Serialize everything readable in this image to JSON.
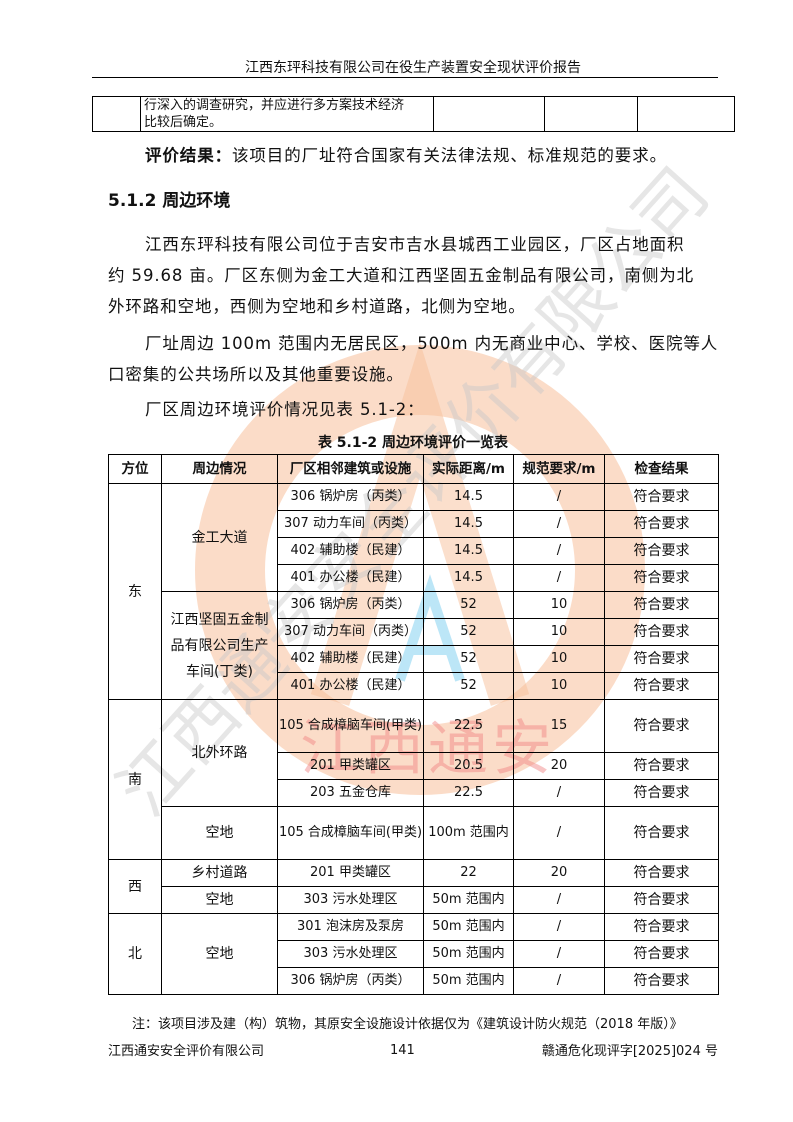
{
  "header": {
    "title": "江西东玶科技有限公司在役生产装置安全现状评价报告"
  },
  "top_table": {
    "cell_text_lines": [
      "行深入的调查研究，并应进行多方案技术经济",
      "比较后确定。"
    ]
  },
  "result": {
    "label": "评价结果：",
    "text": "该项目的厂址符合国家有关法律法规、标准规范的要求。"
  },
  "section": {
    "title": "5.1.2 周边环境"
  },
  "paragraphs": [
    [
      "江西东玶科技有限公司位于吉安市吉水县城西工业园区，厂区占地面积",
      "约 59.68 亩。厂区东侧为金工大道和江西坚固五金制品有限公司，南侧为北",
      "外环路和空地，西侧为空地和乡村道路，北侧为空地。"
    ],
    [
      "厂址周边 100m 范围内无居民区，500m 内无商业中心、学校、医院等人",
      "口密集的公共场所以及其他重要设施。"
    ],
    [
      "厂区周边环境评价情况见表 5.1-2："
    ]
  ],
  "table": {
    "caption": "表 5.1-2   周边环境评价一览表",
    "headers": [
      "方位",
      "周边情况",
      "厂区相邻建筑或设施",
      "实际距离/m",
      "规范要求/m",
      "检查结果"
    ],
    "groups": {
      "east": "东",
      "east_a": "金工大道",
      "east_b": "江西坚固五金制品有限公司生产车间(丁类)",
      "south": "南",
      "south_a": "北外环路",
      "south_b": "空地",
      "west": "西",
      "west_a": "乡村道路",
      "west_b": "空地",
      "north": "北",
      "north_a": "空地"
    },
    "rows": [
      [
        "306 锅炉房（丙类）",
        "14.5",
        "/",
        "符合要求"
      ],
      [
        "307 动力车间（丙类）",
        "14.5",
        "/",
        "符合要求"
      ],
      [
        "402 辅助楼（民建）",
        "14.5",
        "/",
        "符合要求"
      ],
      [
        "401 办公楼（民建）",
        "14.5",
        "/",
        "符合要求"
      ],
      [
        "306 锅炉房（丙类）",
        "52",
        "10",
        "符合要求"
      ],
      [
        "307 动力车间（丙类）",
        "52",
        "10",
        "符合要求"
      ],
      [
        "402 辅助楼（民建）",
        "52",
        "10",
        "符合要求"
      ],
      [
        "401 办公楼（民建）",
        "52",
        "10",
        "符合要求"
      ],
      [
        "105 合成樟脑车间(甲类)",
        "22.5",
        "15",
        "符合要求"
      ],
      [
        "201 甲类罐区",
        "20.5",
        "20",
        "符合要求"
      ],
      [
        "203 五金仓库",
        "22.5",
        "/",
        "符合要求"
      ],
      [
        "105 合成樟脑车间(甲类)",
        "100m 范围内",
        "/",
        "符合要求"
      ],
      [
        "201 甲类罐区",
        "22",
        "20",
        "符合要求"
      ],
      [
        "303 污水处理区",
        "50m 范围内",
        "/",
        "符合要求"
      ],
      [
        "301 泡沫房及泵房",
        "50m 范围内",
        "/",
        "符合要求"
      ],
      [
        "303 污水处理区",
        "50m 范围内",
        "/",
        "符合要求"
      ],
      [
        "306 锅炉房（丙类）",
        "50m 范围内",
        "/",
        "符合要求"
      ]
    ]
  },
  "note": "注：该项目涉及建（构）筑物，其原安全设施设计依据仅为《建筑设计防火规范（2018 年版）》",
  "footer": {
    "left": "江西通安安全评价有限公司",
    "page": "141",
    "right": "赣通危化现评字[2025]024 号"
  },
  "watermark": {
    "text": "江西通安",
    "color": "#f08080",
    "ring_color": "#f5a05a",
    "letter_color": "#7fd0f0"
  }
}
